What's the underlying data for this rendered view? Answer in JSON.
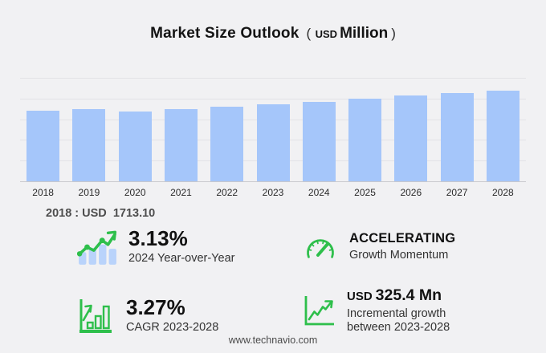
{
  "header": {
    "title": "Market Size Outlook",
    "unit_open": "(",
    "unit_currency": "USD",
    "unit_label": "Million",
    "unit_close": ")"
  },
  "chart_data": {
    "type": "bar",
    "title": "Market Size Outlook (USD Million)",
    "categories": [
      "2018",
      "2019",
      "2020",
      "2021",
      "2022",
      "2023",
      "2024",
      "2025",
      "2026",
      "2027",
      "2028"
    ],
    "values": [
      1713.1,
      1752,
      1695,
      1752,
      1812,
      1871,
      1930,
      2008,
      2067,
      2126,
      2196.4
    ],
    "unit": "USD Million",
    "xlabel": "",
    "ylabel": "",
    "ylim": [
      0,
      2600
    ],
    "gridline_values": [
      500,
      1000,
      1500,
      2000,
      2500
    ],
    "grid": true,
    "legend": false,
    "bar_color": "#a5c6fa"
  },
  "annotation": {
    "base_year_value": "2018 : USD  1713.10"
  },
  "stats": [
    {
      "id": "yoy",
      "icon": "bar-chart-trend-icon",
      "value": "3.13%",
      "label": "2024 Year-over-Year"
    },
    {
      "id": "momentum",
      "icon": "gauge-icon",
      "value": "ACCELERATING",
      "label": "Growth Momentum"
    },
    {
      "id": "cagr",
      "icon": "cagr-bar-chart-icon",
      "value": "3.27%",
      "label": "CAGR 2023-2028"
    },
    {
      "id": "increment",
      "icon": "line-growth-icon",
      "value_prefix": "USD",
      "value": "325.4 Mn",
      "label": "Incremental growth between 2023-2028"
    }
  ],
  "footer": {
    "website": "www.technavio.com"
  },
  "colors": {
    "background": "#f1f1f3",
    "bar_blue": "#a5c6fa",
    "icon_bar_blue": "#b9d3fb",
    "accent_green": "#2ebf4b",
    "gridline": "#e2e2e6"
  }
}
